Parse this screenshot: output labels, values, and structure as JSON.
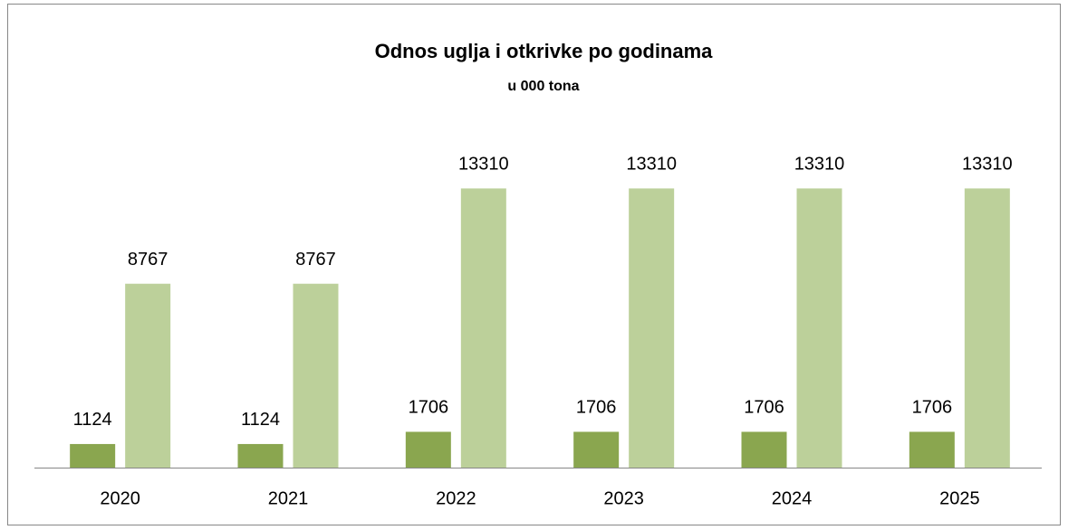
{
  "chart_data": {
    "type": "bar",
    "title": "Odnos uglja i otkrivke po godinama",
    "subtitle": "u 000 tona",
    "categories": [
      "2020",
      "2021",
      "2022",
      "2023",
      "2024",
      "2025"
    ],
    "series": [
      {
        "color": "#8aa64f",
        "values": [
          1124,
          1124,
          1706,
          1706,
          1706,
          1706
        ]
      },
      {
        "color": "#bcd09a",
        "values": [
          8767,
          8767,
          13310,
          13310,
          13310,
          13310
        ]
      }
    ],
    "ylim": [
      0,
      16000
    ]
  }
}
